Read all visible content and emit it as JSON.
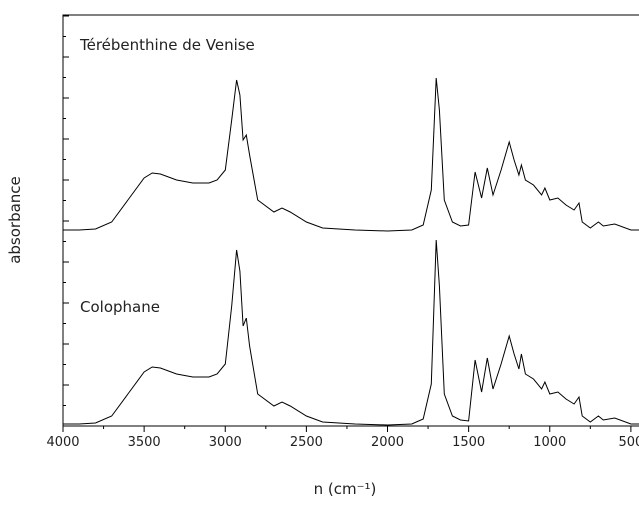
{
  "chart_data": {
    "type": "line",
    "ylabel": "absorbance",
    "xlabel": "n (cm⁻¹)",
    "annotations": [
      "Térébenthine de Venise",
      "Colophane"
    ],
    "xlim": [
      4000,
      450
    ],
    "xticks": [
      4000,
      3500,
      3000,
      2500,
      2000,
      1500,
      1000,
      500
    ],
    "ylim": [
      0,
      41.1
    ],
    "x": [
      4000,
      3900,
      3800,
      3700,
      3600,
      3500,
      3450,
      3400,
      3300,
      3200,
      3100,
      3050,
      3000,
      2960,
      2930,
      2910,
      2890,
      2870,
      2850,
      2800,
      2700,
      2650,
      2600,
      2500,
      2400,
      2200,
      2000,
      1850,
      1780,
      1730,
      1700,
      1680,
      1650,
      1600,
      1550,
      1500,
      1460,
      1420,
      1385,
      1350,
      1300,
      1250,
      1220,
      1190,
      1175,
      1150,
      1100,
      1050,
      1030,
      1000,
      950,
      900,
      850,
      820,
      800,
      750,
      700,
      670,
      600,
      500,
      450
    ],
    "series": [
      {
        "color": "#000000",
        "values": [
          19.6,
          19.6,
          19.7,
          20.4,
          22.6,
          24.8,
          25.3,
          25.2,
          24.6,
          24.3,
          24.3,
          24.6,
          25.6,
          30.6,
          34.6,
          33.1,
          28.6,
          29.1,
          27.1,
          22.6,
          21.4,
          21.8,
          21.4,
          20.4,
          19.8,
          19.6,
          19.5,
          19.6,
          20.1,
          23.6,
          34.8,
          31.6,
          22.6,
          20.4,
          20.0,
          20.1,
          25.4,
          22.8,
          25.8,
          23.1,
          25.6,
          28.4,
          26.6,
          25.1,
          26.1,
          24.6,
          24.1,
          23.1,
          23.8,
          22.6,
          22.8,
          22.1,
          21.6,
          22.3,
          20.4,
          19.8,
          20.4,
          20.0,
          20.2,
          19.6,
          19.6
        ]
      },
      {
        "color": "#000000",
        "values": [
          0.2,
          0.2,
          0.3,
          1.0,
          3.2,
          5.4,
          5.9,
          5.8,
          5.2,
          4.9,
          4.9,
          5.2,
          6.2,
          12.0,
          17.6,
          15.5,
          10.0,
          10.8,
          8.0,
          3.2,
          2.0,
          2.4,
          2.0,
          1.0,
          0.4,
          0.2,
          0.1,
          0.2,
          0.7,
          4.2,
          18.6,
          14.0,
          3.2,
          1.0,
          0.6,
          0.5,
          6.6,
          3.4,
          6.8,
          3.7,
          6.2,
          9.0,
          7.2,
          5.7,
          7.2,
          5.2,
          4.7,
          3.7,
          4.4,
          3.2,
          3.4,
          2.7,
          2.2,
          2.9,
          1.0,
          0.4,
          1.0,
          0.6,
          0.8,
          0.2,
          0.2
        ]
      }
    ]
  }
}
